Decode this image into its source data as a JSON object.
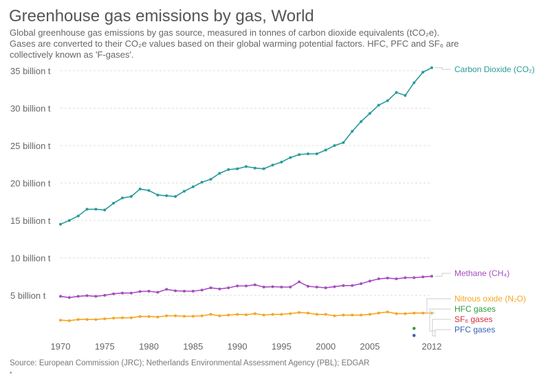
{
  "title": "Greenhouse gas emissions by gas, World",
  "subtitle_line1": "Global greenhouse gas emissions by gas source, measured in tonnes of carbon dioxide equivalents (tCO₂e).",
  "subtitle_line2": "Gases are converted to their CO₂e values based on their global warming potential factors. HFC, PFC and SF₆ are",
  "subtitle_line3": "collectively known as 'F-gases'.",
  "source": "Source: European Commission (JRC); Netherlands Environmental Assessment Agency (PBL); EDGAR",
  "footnote_marker": "•",
  "chart_data": {
    "type": "line",
    "xlim": [
      1970,
      2012
    ],
    "ylim": [
      0,
      35
    ],
    "grid": true,
    "legend": "right, end-of-line labels",
    "x_ticks": [
      "1970",
      "1975",
      "1980",
      "1985",
      "1990",
      "1995",
      "2000",
      "2005",
      "2012"
    ],
    "x_tick_values": [
      1970,
      1975,
      1980,
      1985,
      1990,
      1995,
      2000,
      2005,
      2012
    ],
    "y_ticks": [
      "5 billion t",
      "10 billion t",
      "15 billion t",
      "20 billion t",
      "25 billion t",
      "30 billion t",
      "35 billion t"
    ],
    "y_tick_values": [
      5,
      10,
      15,
      20,
      25,
      30,
      35
    ],
    "unit": "billion t",
    "x": [
      1970,
      1971,
      1972,
      1973,
      1974,
      1975,
      1976,
      1977,
      1978,
      1979,
      1980,
      1981,
      1982,
      1983,
      1984,
      1985,
      1986,
      1987,
      1988,
      1989,
      1990,
      1991,
      1992,
      1993,
      1994,
      1995,
      1996,
      1997,
      1998,
      1999,
      2000,
      2001,
      2002,
      2003,
      2004,
      2005,
      2006,
      2007,
      2008,
      2009,
      2010,
      2011,
      2012
    ],
    "series": [
      {
        "name": "Carbon Dioxide (CO₂)",
        "color": "#2a9a9a",
        "values": [
          14.5,
          15.0,
          15.6,
          16.5,
          16.5,
          16.4,
          17.3,
          18.0,
          18.2,
          19.2,
          19.0,
          18.4,
          18.3,
          18.2,
          18.9,
          19.5,
          20.1,
          20.5,
          21.3,
          21.8,
          21.9,
          22.2,
          22.0,
          21.9,
          22.4,
          22.8,
          23.4,
          23.8,
          23.9,
          23.9,
          24.4,
          25.0,
          25.4,
          26.9,
          28.2,
          29.3,
          30.4,
          31.0,
          32.1,
          31.7,
          33.4,
          34.8,
          35.4
        ]
      },
      {
        "name": "Methane (CH₄)",
        "color": "#a64dbf",
        "values": [
          4.86,
          4.7,
          4.86,
          4.95,
          4.86,
          5.0,
          5.2,
          5.3,
          5.3,
          5.5,
          5.55,
          5.4,
          5.8,
          5.6,
          5.55,
          5.55,
          5.7,
          6.0,
          5.85,
          6.0,
          6.25,
          6.25,
          6.4,
          6.1,
          6.15,
          6.1,
          6.1,
          6.8,
          6.2,
          6.1,
          6.0,
          6.15,
          6.3,
          6.3,
          6.55,
          6.9,
          7.2,
          7.3,
          7.2,
          7.35,
          7.35,
          7.45,
          7.55
        ]
      },
      {
        "name": "Nitrous oxide (N₂O)",
        "color": "#f5a623",
        "values": [
          1.68,
          1.6,
          1.77,
          1.77,
          1.77,
          1.86,
          1.95,
          2.0,
          2.0,
          2.17,
          2.17,
          2.1,
          2.26,
          2.26,
          2.2,
          2.2,
          2.26,
          2.45,
          2.26,
          2.36,
          2.45,
          2.4,
          2.55,
          2.36,
          2.45,
          2.45,
          2.55,
          2.7,
          2.63,
          2.45,
          2.45,
          2.26,
          2.36,
          2.36,
          2.36,
          2.45,
          2.63,
          2.78,
          2.55,
          2.55,
          2.63,
          2.63,
          2.63
        ]
      },
      {
        "name": "HFC gases",
        "color": "#2e9b3e",
        "points": [
          [
            2010,
            0.3
          ]
        ]
      },
      {
        "name": "SF₆ gases",
        "color": "#d62d3a",
        "points": [
          [
            2010,
            0.0
          ]
        ]
      },
      {
        "name": "PFC gases",
        "color": "#3a5fb5",
        "points": [
          [
            2010,
            0.0
          ]
        ]
      }
    ]
  }
}
